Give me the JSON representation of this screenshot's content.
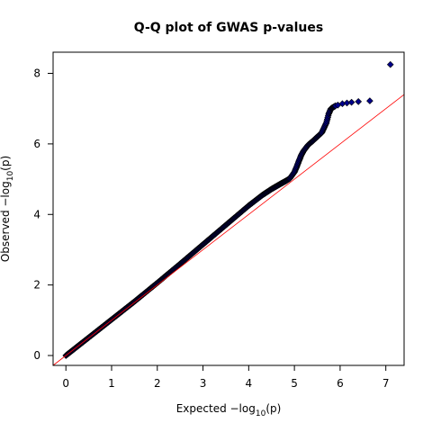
{
  "chart_data": {
    "type": "scatter",
    "title": "Q-Q plot of GWAS p-values",
    "xlabel": {
      "prefix": "Expected  −log",
      "sub": "10",
      "suffix": "(p)"
    },
    "ylabel": {
      "prefix": "Observed  −log",
      "sub": "10",
      "suffix": "(p)"
    },
    "xlim": [
      -0.28,
      7.4
    ],
    "ylim": [
      -0.28,
      8.6
    ],
    "xticks": [
      0,
      1,
      2,
      3,
      4,
      5,
      6,
      7
    ],
    "yticks": [
      0,
      2,
      4,
      6,
      8
    ],
    "grid": false,
    "reference_line": {
      "slope": 1,
      "intercept": 0,
      "color": "#ff0000"
    },
    "marker_color": "#00008b",
    "marker_shape": "diamond",
    "curve": [
      [
        0.0,
        0.0
      ],
      [
        0.5,
        0.51
      ],
      [
        1.0,
        1.02
      ],
      [
        1.5,
        1.53
      ],
      [
        2.0,
        2.06
      ],
      [
        2.5,
        2.6
      ],
      [
        3.0,
        3.15
      ],
      [
        3.5,
        3.7
      ],
      [
        4.0,
        4.25
      ],
      [
        4.3,
        4.55
      ],
      [
        4.5,
        4.72
      ],
      [
        4.7,
        4.87
      ],
      [
        4.8,
        4.94
      ],
      [
        4.9,
        5.02
      ],
      [
        5.0,
        5.2
      ],
      [
        5.05,
        5.35
      ],
      [
        5.1,
        5.52
      ],
      [
        5.15,
        5.68
      ],
      [
        5.2,
        5.8
      ],
      [
        5.3,
        5.97
      ],
      [
        5.4,
        6.08
      ],
      [
        5.5,
        6.2
      ],
      [
        5.6,
        6.32
      ],
      [
        5.7,
        6.6
      ],
      [
        5.75,
        6.85
      ],
      [
        5.8,
        7.0
      ],
      [
        5.9,
        7.08
      ]
    ],
    "tail_points": [
      [
        5.95,
        7.1
      ],
      [
        6.05,
        7.14
      ],
      [
        6.15,
        7.16
      ],
      [
        6.25,
        7.18
      ],
      [
        6.4,
        7.2
      ],
      [
        6.65,
        7.22
      ],
      [
        7.1,
        8.25
      ]
    ]
  }
}
